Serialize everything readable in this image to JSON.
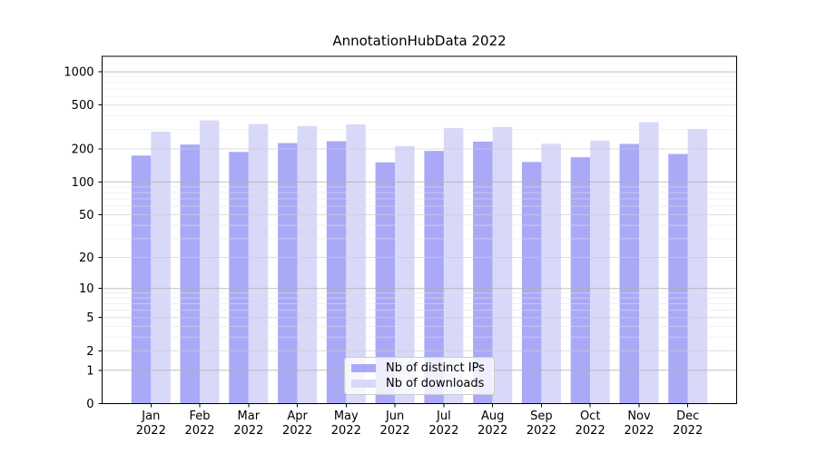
{
  "chart_data": {
    "type": "bar",
    "title": "AnnotationHubData 2022",
    "categories": [
      "Jan",
      "Feb",
      "Mar",
      "Apr",
      "May",
      "Jun",
      "Jul",
      "Aug",
      "Sep",
      "Oct",
      "Nov",
      "Dec"
    ],
    "category_year": "2022",
    "series": [
      {
        "name": "Nb of distinct IPs",
        "color": "#a9a9f7",
        "values": [
          174,
          219,
          188,
          226,
          235,
          151,
          192,
          233,
          152,
          168,
          222,
          180
        ]
      },
      {
        "name": "Nb of downloads",
        "color": "#d8d8f9",
        "values": [
          287,
          363,
          336,
          322,
          334,
          212,
          310,
          316,
          223,
          238,
          350,
          303
        ]
      }
    ],
    "yscale": "log1p",
    "yticks": [
      0,
      1,
      2,
      5,
      10,
      20,
      50,
      100,
      200,
      500,
      1000
    ],
    "ylim": [
      0,
      1382
    ],
    "xlabel": "",
    "ylabel": "",
    "grid": true,
    "legend_position": "lower center",
    "colors": {
      "bar_distinct_ips": "#a9a9f7",
      "bar_downloads": "#d8d8f9",
      "grid_major": "#b0b0b0",
      "grid_mid": "#cfcfcf",
      "grid_minor": "#e4e4e4",
      "axis": "#000000",
      "text": "#000000",
      "background": "#ffffff"
    }
  }
}
